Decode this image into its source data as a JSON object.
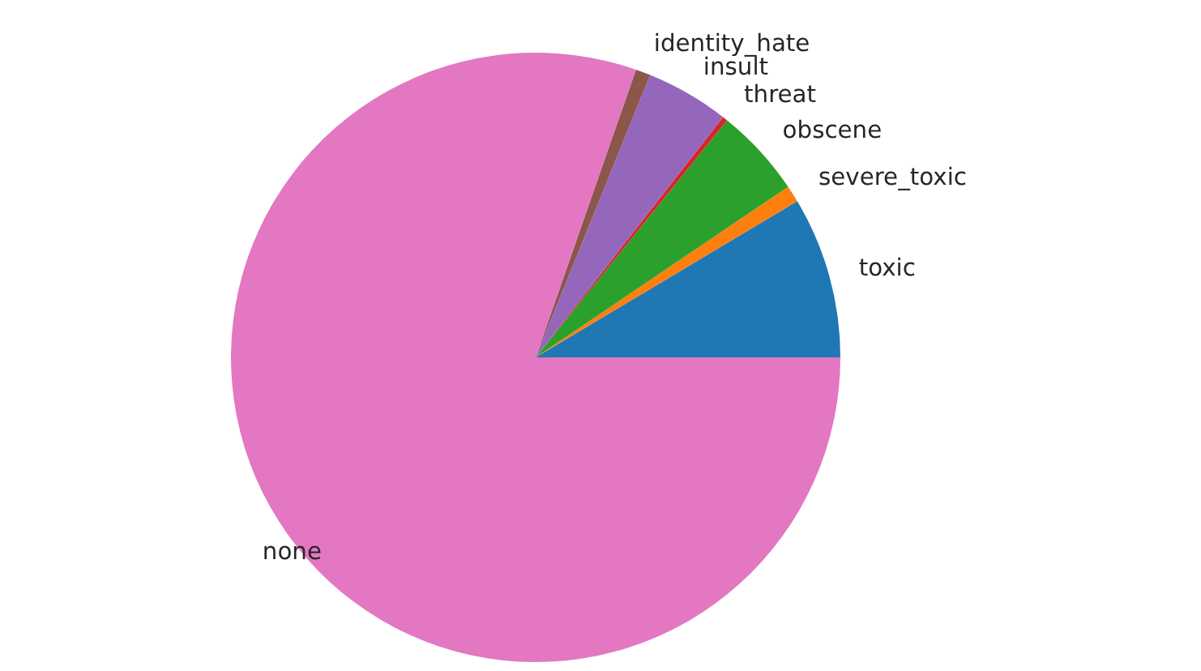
{
  "chart_data": {
    "type": "pie",
    "categories": [
      "toxic",
      "severe_toxic",
      "obscene",
      "threat",
      "insult",
      "identity_hate",
      "none"
    ],
    "values": [
      8.57,
      0.89,
      4.73,
      0.27,
      4.41,
      0.79,
      80.34
    ],
    "colors": [
      "#1f77b4",
      "#ff7f0e",
      "#2ca02c",
      "#d62728",
      "#9467bd",
      "#8c564b",
      "#e377c2"
    ]
  }
}
